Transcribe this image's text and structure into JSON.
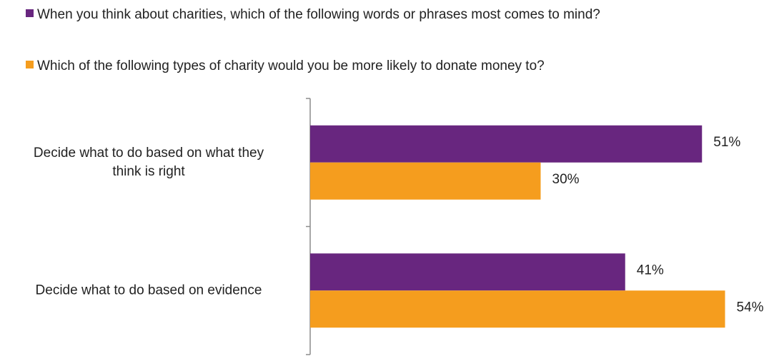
{
  "chart_data": {
    "type": "bar",
    "orientation": "horizontal",
    "categories": [
      [
        "Decide what to do based on what they",
        "think is right"
      ],
      [
        "Decide what to do based on evidence"
      ]
    ],
    "series": [
      {
        "name": "When you think about charities, which of the following words or phrases most comes to mind?",
        "color": "#68267f",
        "values": [
          51,
          41
        ]
      },
      {
        "name": "Which of the following types of charity would you be more likely to donate money to?",
        "color": "#f59d1e",
        "values": [
          30,
          54
        ]
      }
    ],
    "value_suffix": "%",
    "xlim": [
      0,
      60
    ],
    "legend_position": "top",
    "grid": false
  }
}
